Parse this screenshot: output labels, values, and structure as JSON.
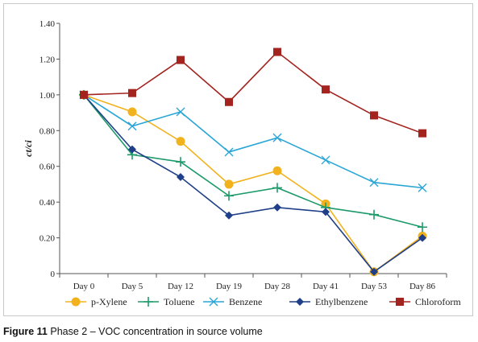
{
  "caption": {
    "figure_number": "Figure 11",
    "text": " Phase 2 – VOC concentration in source volume"
  },
  "chart_data": {
    "type": "line",
    "title": "",
    "xlabel": "",
    "ylabel": "ct/ci",
    "categories": [
      "Day 0",
      "Day 5",
      "Day 12",
      "Day 19",
      "Day 28",
      "Day 41",
      "Day 53",
      "Day 86"
    ],
    "ylim": [
      0,
      1.4
    ],
    "yticks": [
      "0",
      "0.20",
      "0.40",
      "0.60",
      "0.80",
      "1.00",
      "1.20",
      "1.40"
    ],
    "grid": false,
    "legend_position": "bottom",
    "series": [
      {
        "name": "p-Xylene",
        "color": "#f2b21d",
        "marker": "circle",
        "values": [
          1.0,
          0.905,
          0.74,
          0.5,
          0.575,
          0.39,
          0.01,
          0.21
        ]
      },
      {
        "name": "Toluene",
        "color": "#1e9b6a",
        "marker": "plus",
        "values": [
          1.0,
          0.665,
          0.625,
          0.435,
          0.48,
          0.37,
          0.33,
          0.26
        ]
      },
      {
        "name": "Benzene",
        "color": "#2aa6d6",
        "marker": "cross",
        "values": [
          1.0,
          0.825,
          0.905,
          0.68,
          0.76,
          0.635,
          0.51,
          0.48
        ]
      },
      {
        "name": "Ethylbenzene",
        "color": "#1f3f88",
        "marker": "diamond",
        "values": [
          1.0,
          0.695,
          0.54,
          0.325,
          0.37,
          0.345,
          0.01,
          0.2
        ]
      },
      {
        "name": "Chloroform",
        "color": "#a3231f",
        "marker": "square",
        "values": [
          1.0,
          1.01,
          1.195,
          0.96,
          1.24,
          1.03,
          0.885,
          0.785
        ]
      }
    ]
  }
}
